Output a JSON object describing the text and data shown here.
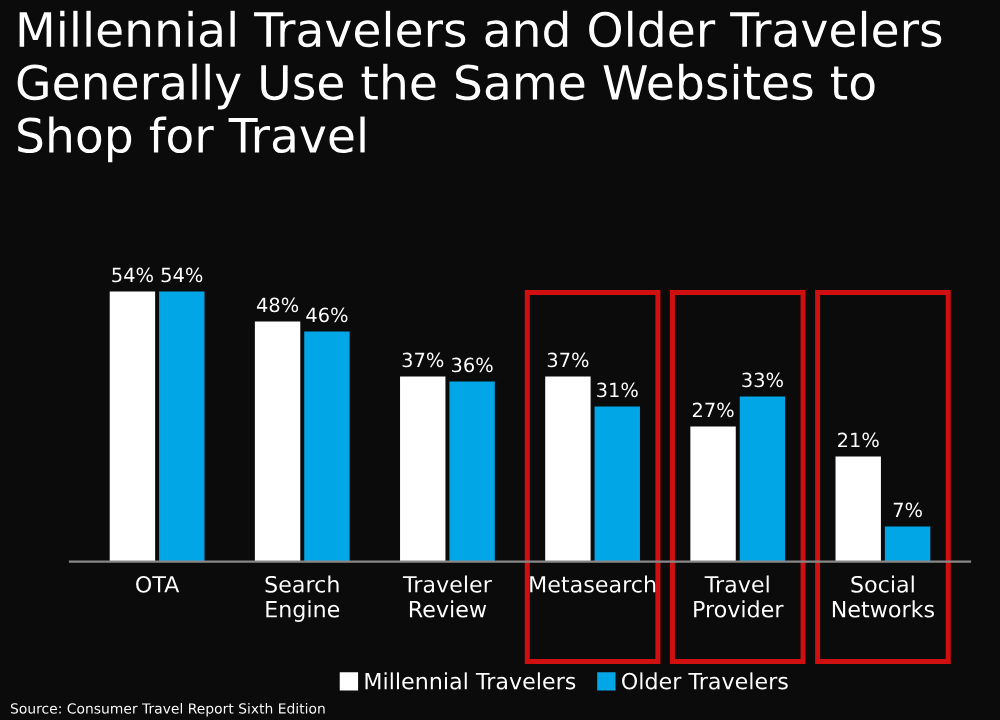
{
  "chart_data": {
    "type": "bar",
    "title": "Millennial Travelers and Older Travelers Generally Use the Same Websites to Shop for Travel",
    "categories": [
      "OTA",
      "Search\nEngine",
      "Traveler\nReview",
      "Metasearch",
      "Travel\nProvider",
      "Social\nNetworks"
    ],
    "series": [
      {
        "name": "Millennial Travelers",
        "color": "#ffffff",
        "values": [
          54,
          48,
          37,
          37,
          27,
          21
        ],
        "value_labels": [
          "54%",
          "48%",
          "37%",
          "37%",
          "27%",
          "21%"
        ]
      },
      {
        "name": "Older Travelers",
        "color": "#00a6e6",
        "values": [
          54,
          46,
          36,
          31,
          33,
          7
        ],
        "value_labels": [
          "54%",
          "46%",
          "36%",
          "31%",
          "33%",
          "7%"
        ]
      }
    ],
    "legend": "bottom",
    "grid": false,
    "annotations": [
      "Source: Consumer Travel Report Sixth Edition"
    ]
  }
}
